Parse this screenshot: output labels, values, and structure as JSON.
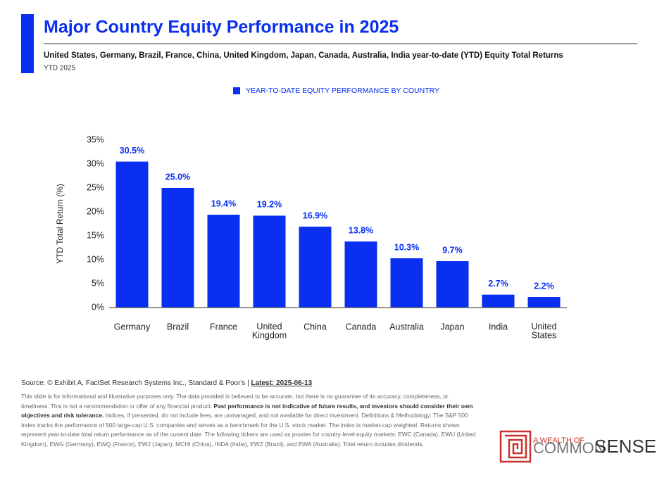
{
  "chart_data": {
    "type": "bar",
    "title": "Major Country Equity Performance in 2025",
    "subtitle": "United States, Germany, Brazil, France, China, United Kingdom, Japan, Canada, Australia, India year-to-date (YTD) Equity Total Returns",
    "period": "YTD 2025",
    "y_label": "YTD Total Return (%)",
    "categories": [
      "Germany",
      "Brazil",
      "France",
      "United Kingdom",
      "China",
      "Canada",
      "Australia",
      "Japan",
      "India",
      "United States"
    ],
    "series": [
      {
        "name": "YEAR-TO-DATE EQUITY PERFORMANCE BY COUNTRY",
        "color": "#0a2ff0",
        "values": [
          30.5,
          25.0,
          19.4,
          19.2,
          16.9,
          13.8,
          10.3,
          9.7,
          2.7,
          2.2
        ],
        "value_labels": [
          "30.5%",
          "25.0%",
          "19.4%",
          "19.2%",
          "16.9%",
          "13.8%",
          "10.3%",
          "9.7%",
          "2.7%",
          "2.2%"
        ]
      }
    ],
    "ylim": [
      0,
      35
    ],
    "yticks": [
      {
        "value": 0,
        "label": "0%"
      },
      {
        "value": 5,
        "label": "5%"
      },
      {
        "value": 10,
        "label": "10%"
      },
      {
        "value": 15,
        "label": "15%"
      },
      {
        "value": 20,
        "label": "20%"
      },
      {
        "value": 25,
        "label": "25%"
      },
      {
        "value": 30,
        "label": "30%"
      },
      {
        "value": 35,
        "label": "35%"
      }
    ],
    "grid": false,
    "legend": "top"
  },
  "footer": {
    "source": [
      "Source: © Exhibit A, FactSet Research Systems Inc., Standard & Poor's | ",
      "Latest: 2025-06-13"
    ],
    "disclaimer": [
      "This slide is for informational and illustrative purposes only. The data provided is believed to be accurate, but there is no guarantee of its accuracy, completeness, or timeliness. This is not a recommendation or offer of any financial product. ",
      "Past performance is not indicative of future results, and investors should consider their own objectives and risk tolerance.",
      " Indices, if presented, do not include fees, are unmanaged, and not available for direct investment. Definitions & Methodology: The S&P 500 Index tracks the performance of 500 large-cap U.S. companies and serves as a benchmark for the U.S. stock market. The index is market-cap weighted. Returns shown represent year-to-date total return performance as of the current date. The following tickers are used as proxies for country-level equity markets: EWC (Canada), EWU (United Kingdom), EWG (Germany), EWQ (France), EWJ (Japan), MCHI (China), INDA (India), EWZ (Brazil), and EWA (Australia). Total return includes dividends."
    ],
    "logo": [
      "A WEALTH OF",
      "COMMON",
      "SENSE"
    ]
  }
}
